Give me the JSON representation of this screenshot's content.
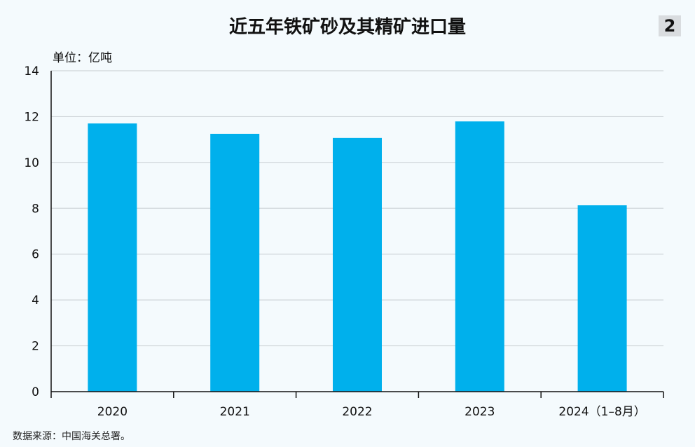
{
  "header": {
    "badge": "2"
  },
  "footer": {
    "source": "数据来源：中国海关总署。"
  },
  "colors": {
    "bar": "#00b0ec",
    "grid": "#cfd5d9",
    "axis": "#111111",
    "background": "#f4fafd"
  },
  "chart_data": {
    "type": "bar",
    "title": "近五年铁矿砂及其精矿进口量",
    "unit_label": "单位：亿吨",
    "categories": [
      "2020",
      "2021",
      "2022",
      "2023",
      "2024（1–8月）"
    ],
    "values": [
      11.7,
      11.25,
      11.07,
      11.79,
      8.13
    ],
    "ylim": [
      0,
      14
    ],
    "yticks": [
      "0",
      "2",
      "4",
      "6",
      "8",
      "10",
      "12",
      "14"
    ],
    "grid": true,
    "legend": "none"
  }
}
